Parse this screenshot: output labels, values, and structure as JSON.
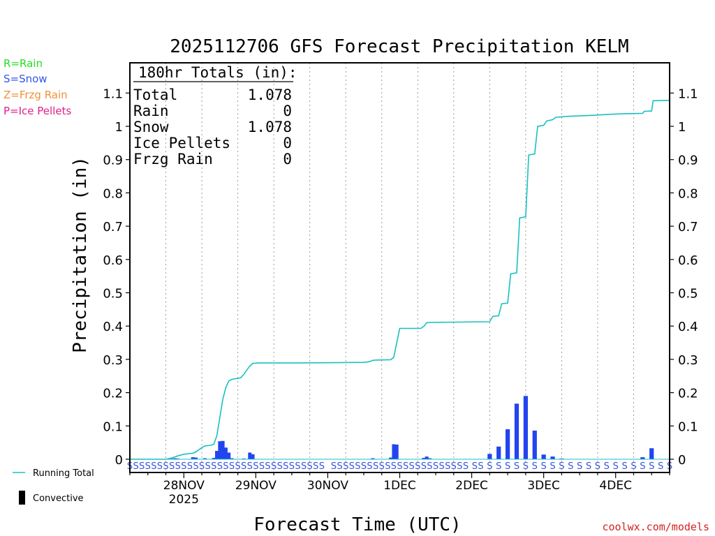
{
  "chart_data": {
    "type": "bar",
    "title": "2025112706 GFS Forecast Precipitation KELM",
    "xlabel": "Forecast Time (UTC)",
    "ylabel": "Precipitation (in)",
    "ylim": [
      0,
      1.18
    ],
    "y_ticks": [
      0,
      0.1,
      0.2,
      0.3,
      0.4,
      0.5,
      0.6,
      0.7,
      0.8,
      0.9,
      1,
      1.1
    ],
    "y_tick_labels": [
      "0",
      "0.1",
      "0.2",
      "0.3",
      "0.4",
      "0.5",
      "0.6",
      "0.7",
      "0.8",
      "0.9",
      "1",
      "1.1"
    ],
    "x_hours_range": [
      6,
      186
    ],
    "x_ticks": [
      {
        "hour": 24,
        "label": "28NOV",
        "sublabel": "2025"
      },
      {
        "hour": 48,
        "label": "29NOV",
        "sublabel": ""
      },
      {
        "hour": 72,
        "label": "30NOV",
        "sublabel": ""
      },
      {
        "hour": 96,
        "label": "1DEC",
        "sublabel": ""
      },
      {
        "hour": 120,
        "label": "2DEC",
        "sublabel": ""
      },
      {
        "hour": 144,
        "label": "3DEC",
        "sublabel": ""
      },
      {
        "hour": 168,
        "label": "4DEC",
        "sublabel": ""
      }
    ],
    "hourly_bars": {
      "name": "Snow",
      "color": "#2244ee",
      "points": [
        [
          20,
          0.002
        ],
        [
          21,
          0.003
        ],
        [
          22,
          0.002
        ],
        [
          25,
          0.001
        ],
        [
          27,
          0.006
        ],
        [
          28,
          0.005
        ],
        [
          31,
          0.003
        ],
        [
          34,
          0.004
        ],
        [
          35,
          0.025
        ],
        [
          36,
          0.054
        ],
        [
          37,
          0.055
        ],
        [
          38,
          0.035
        ],
        [
          39,
          0.02
        ],
        [
          40,
          0.003
        ],
        [
          44,
          0.002
        ],
        [
          46,
          0.02
        ],
        [
          47,
          0.015
        ],
        [
          87,
          0.003
        ],
        [
          90,
          0.001
        ],
        [
          93,
          0.005
        ],
        [
          94,
          0.045
        ],
        [
          95,
          0.044
        ],
        [
          104,
          0.004
        ],
        [
          105,
          0.008
        ],
        [
          106,
          0.003
        ]
      ]
    },
    "three_hourly_bars": {
      "name": "Snow",
      "color": "#2244ee",
      "points": [
        [
          126,
          0.016
        ],
        [
          129,
          0.038
        ],
        [
          132,
          0.09
        ],
        [
          135,
          0.167
        ],
        [
          138,
          0.19
        ],
        [
          141,
          0.086
        ],
        [
          144,
          0.014
        ],
        [
          147,
          0.008
        ],
        [
          150,
          0.002
        ],
        [
          177,
          0.006
        ],
        [
          180,
          0.033
        ]
      ]
    },
    "running_total": {
      "name": "Running Total",
      "color": "#19c0c0",
      "points": [
        [
          6,
          0
        ],
        [
          18,
          0
        ],
        [
          20,
          0.004
        ],
        [
          22,
          0.01
        ],
        [
          24,
          0.015
        ],
        [
          27,
          0.018
        ],
        [
          28,
          0.022
        ],
        [
          30,
          0.035
        ],
        [
          31,
          0.04
        ],
        [
          33,
          0.042
        ],
        [
          34,
          0.045
        ],
        [
          35,
          0.07
        ],
        [
          36,
          0.125
        ],
        [
          37,
          0.18
        ],
        [
          38,
          0.215
        ],
        [
          39,
          0.235
        ],
        [
          40,
          0.24
        ],
        [
          42,
          0.243
        ],
        [
          43,
          0.245
        ],
        [
          44,
          0.255
        ],
        [
          45,
          0.268
        ],
        [
          46,
          0.28
        ],
        [
          47,
          0.288
        ],
        [
          49,
          0.289
        ],
        [
          60,
          0.289
        ],
        [
          72,
          0.29
        ],
        [
          84,
          0.291
        ],
        [
          86,
          0.293
        ],
        [
          87,
          0.297
        ],
        [
          88,
          0.298
        ],
        [
          93,
          0.299
        ],
        [
          94,
          0.306
        ],
        [
          95,
          0.35
        ],
        [
          96,
          0.393
        ],
        [
          103,
          0.393
        ],
        [
          104,
          0.399
        ],
        [
          105,
          0.41
        ],
        [
          106,
          0.411
        ],
        [
          115,
          0.412
        ],
        [
          126,
          0.413
        ],
        [
          127,
          0.429
        ],
        [
          129,
          0.431
        ],
        [
          130,
          0.467
        ],
        [
          132,
          0.469
        ],
        [
          133,
          0.557
        ],
        [
          135,
          0.56
        ],
        [
          136,
          0.725
        ],
        [
          138,
          0.728
        ],
        [
          139,
          0.914
        ],
        [
          141,
          0.917
        ],
        [
          142,
          1.0
        ],
        [
          144,
          1.003
        ],
        [
          145,
          1.016
        ],
        [
          147,
          1.02
        ],
        [
          148,
          1.027
        ],
        [
          152,
          1.03
        ],
        [
          160,
          1.033
        ],
        [
          166,
          1.036
        ],
        [
          171,
          1.038
        ],
        [
          177,
          1.039
        ],
        [
          177.5,
          1.045
        ],
        [
          180,
          1.046
        ],
        [
          180.5,
          1.077
        ],
        [
          186,
          1.078
        ]
      ]
    },
    "ptype_markers": {
      "label": "S",
      "color": "#3355dd",
      "hours": [
        6,
        8,
        10,
        12,
        14,
        16,
        18,
        20,
        22,
        24,
        26,
        28,
        30,
        32,
        34,
        36,
        38,
        40,
        42,
        44,
        46,
        48,
        50,
        52,
        54,
        56,
        58,
        60,
        62,
        64,
        66,
        68,
        70,
        74,
        76,
        78,
        80,
        82,
        84,
        86,
        88,
        90,
        92,
        94,
        96,
        98,
        100,
        102,
        104,
        106,
        108,
        110,
        112,
        114,
        116,
        118,
        121,
        123,
        126,
        129,
        132,
        135,
        138,
        141,
        144,
        147,
        150,
        153,
        156,
        159,
        162,
        165,
        168,
        171,
        174,
        177,
        180,
        183,
        186
      ]
    },
    "totals_box": {
      "header": "180hr Totals (in):",
      "rows": [
        {
          "label": "Total",
          "value": "1.078"
        },
        {
          "label": "Rain",
          "value": "0"
        },
        {
          "label": "Snow",
          "value": "1.078"
        },
        {
          "label": "Ice Pellets",
          "value": "0"
        },
        {
          "label": "Frzg Rain",
          "value": "0"
        }
      ]
    },
    "bottom_legend": {
      "running_total": "Running Total",
      "convective": "Convective"
    }
  },
  "ptype_legend": [
    {
      "text": "R=Rain",
      "color": "#22dd22"
    },
    {
      "text": "S=Snow",
      "color": "#3355ee"
    },
    {
      "text": "Z=Frzg Rain",
      "color": "#f0903a"
    },
    {
      "text": "P=Ice Pellets",
      "color": "#e0208a"
    }
  ],
  "credit": "coolwx.com/models"
}
